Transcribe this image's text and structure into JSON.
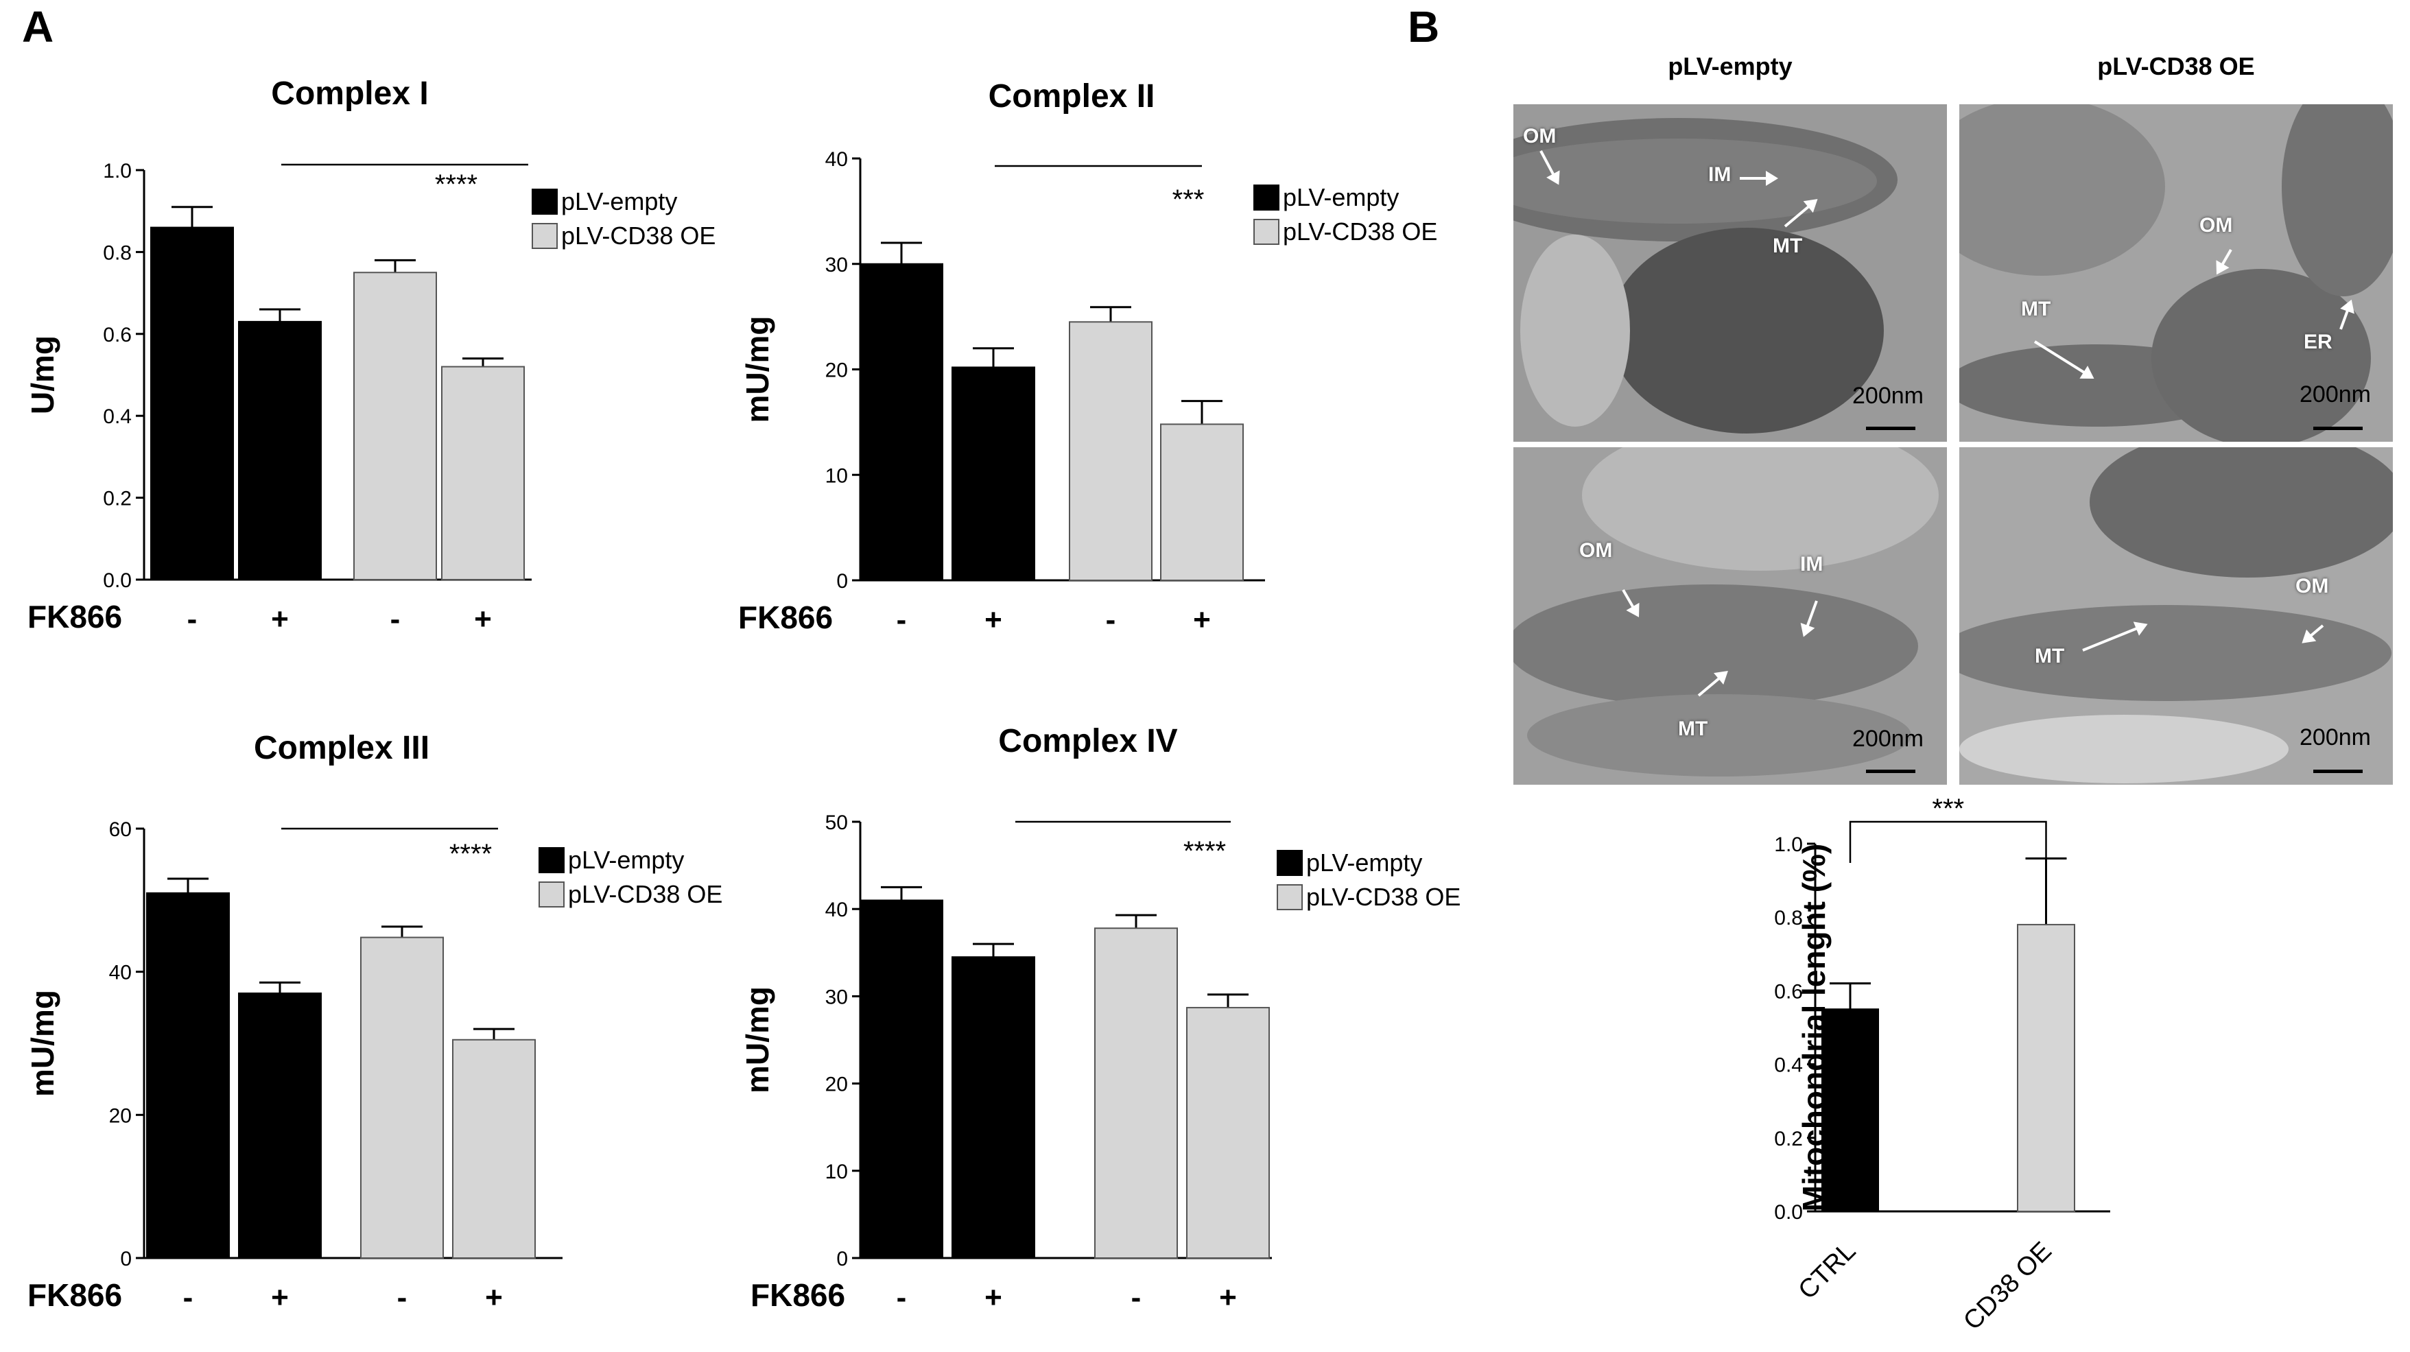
{
  "panels": {
    "a": "A",
    "b": "B"
  },
  "colors": {
    "empty": "#000000",
    "cd38": "#d6d6d6",
    "outline": "#333333"
  },
  "em": {
    "col_titles": [
      "pLV-empty",
      "pLV-CD38 OE"
    ],
    "scale_text": "200nm",
    "tiles": [
      {
        "labels": [
          "OM",
          "IM",
          "MT"
        ]
      },
      {
        "labels": [
          "OM",
          "MT",
          "ER"
        ]
      },
      {
        "labels": [
          "OM",
          "IM",
          "MT"
        ]
      },
      {
        "labels": [
          "OM",
          "MT"
        ]
      }
    ]
  },
  "chart_data": [
    {
      "type": "bar",
      "title": "Complex I",
      "ylabel": "U/mg",
      "xlabel": "FK866",
      "ylim": [
        0,
        1.0
      ],
      "yticks": [
        "0.0",
        "0.2",
        "0.4",
        "0.6",
        "0.8",
        "1.0"
      ],
      "categories": [
        "-",
        "+",
        "-",
        "+"
      ],
      "values": [
        0.86,
        0.63,
        0.75,
        0.52
      ],
      "errors": [
        0.05,
        0.03,
        0.03,
        0.02
      ],
      "series_index": [
        0,
        0,
        1,
        1
      ],
      "legend": [
        "pLV-empty",
        "pLV-CD38 OE"
      ],
      "significance": "****"
    },
    {
      "type": "bar",
      "title": "Complex II",
      "ylabel": "mU/mg",
      "xlabel": "FK866",
      "ylim": [
        0,
        40
      ],
      "yticks": [
        "0",
        "10",
        "20",
        "30",
        "40"
      ],
      "categories": [
        "-",
        "+",
        "-",
        "+"
      ],
      "values": [
        30.0,
        20.2,
        24.5,
        14.8
      ],
      "errors": [
        2.0,
        1.8,
        1.4,
        2.2
      ],
      "series_index": [
        0,
        0,
        1,
        1
      ],
      "legend": [
        "pLV-empty",
        "pLV-CD38 OE"
      ],
      "significance": "***"
    },
    {
      "type": "bar",
      "title": "Complex III",
      "ylabel": "mU/mg",
      "xlabel": "FK866",
      "ylim": [
        0,
        60
      ],
      "yticks": [
        "0",
        "20",
        "40",
        "60"
      ],
      "categories": [
        "-",
        "+",
        "-",
        "+"
      ],
      "values": [
        51.0,
        37.0,
        44.8,
        30.5
      ],
      "errors": [
        2.0,
        1.5,
        1.5,
        1.5
      ],
      "series_index": [
        0,
        0,
        1,
        1
      ],
      "legend": [
        "pLV-empty",
        "pLV-CD38 OE"
      ],
      "significance": "****"
    },
    {
      "type": "bar",
      "title": "Complex IV",
      "ylabel": "mU/mg",
      "xlabel": "FK866",
      "ylim": [
        0,
        50
      ],
      "yticks": [
        "0",
        "10",
        "20",
        "30",
        "40",
        "50"
      ],
      "categories": [
        "-",
        "+",
        "-",
        "+"
      ],
      "values": [
        41.0,
        34.5,
        37.8,
        28.7
      ],
      "errors": [
        1.5,
        1.5,
        1.5,
        1.5
      ],
      "series_index": [
        0,
        0,
        1,
        1
      ],
      "legend": [
        "pLV-empty",
        "pLV-CD38 OE"
      ],
      "significance": "****"
    },
    {
      "type": "bar",
      "title": "",
      "ylabel": "Mitochondrial lenght (%)",
      "xlabel": "",
      "ylim": [
        0,
        1.0
      ],
      "yticks": [
        "0.0",
        "0.2",
        "0.4",
        "0.6",
        "0.8",
        "1.0"
      ],
      "categories": [
        "CTRL",
        "CD38 OE"
      ],
      "values": [
        0.55,
        0.78
      ],
      "errors": [
        0.07,
        0.18
      ],
      "series_index": [
        0,
        1
      ],
      "legend": [],
      "significance": "***"
    }
  ]
}
